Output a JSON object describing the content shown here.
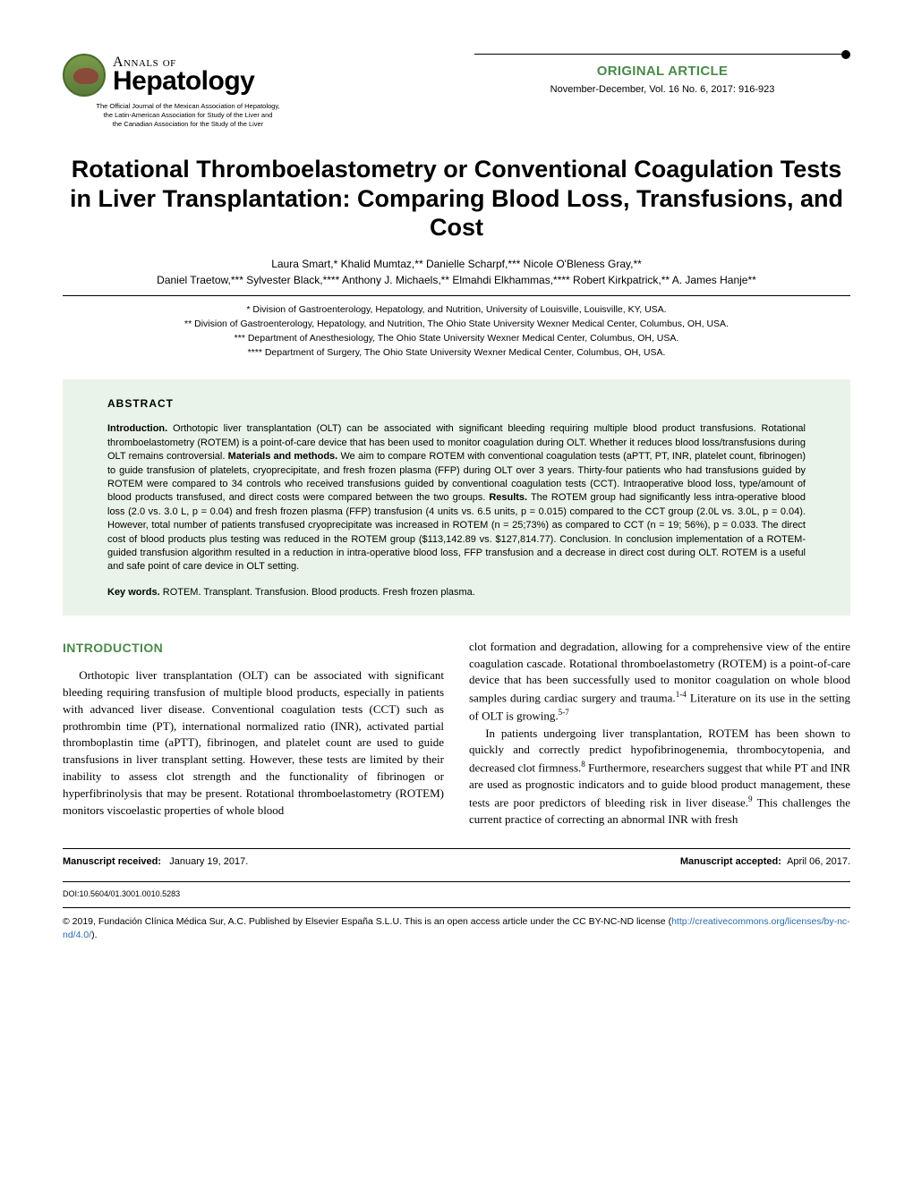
{
  "journal": {
    "annals_of": "Annals of",
    "name": "Hepatology",
    "subtitle_line1": "The Official Journal of the Mexican Association of Hepatology,",
    "subtitle_line2": "the Latin-American Association for Study of the Liver and",
    "subtitle_line3": "the Canadian Association for the Study of the Liver"
  },
  "meta": {
    "article_type": "ORIGINAL ARTICLE",
    "issue": "November-December, Vol. 16 No. 6, 2017: 916-923"
  },
  "title": "Rotational Thromboelastometry or Conventional Coagulation Tests in Liver Transplantation: Comparing Blood Loss, Transfusions, and Cost",
  "authors_line1": "Laura Smart,* Khalid Mumtaz,** Danielle Scharpf,*** Nicole O'Bleness Gray,**",
  "authors_line2": "Daniel Traetow,*** Sylvester Black,**** Anthony J. Michaels,** Elmahdi Elkhammas,**** Robert Kirkpatrick,** A. James Hanje**",
  "affiliations": {
    "a1": "* Division of Gastroenterology, Hepatology, and Nutrition, University of Louisville, Louisville, KY, USA.",
    "a2": "** Division of Gastroenterology, Hepatology, and Nutrition, The Ohio State University Wexner Medical Center, Columbus, OH, USA.",
    "a3": "*** Department of Anesthesiology, The Ohio State University Wexner Medical Center, Columbus, OH, USA.",
    "a4": "**** Department of Surgery, The Ohio State University Wexner Medical Center, Columbus, OH, USA."
  },
  "abstract": {
    "heading": "ABSTRACT",
    "intro_label": "Introduction.",
    "intro": " Orthotopic liver transplantation (OLT) can be associated with significant bleeding requiring multiple blood product transfusions. Rotational thromboelastometry (ROTEM) is a point-of-care device that has been used to monitor coagulation during OLT. Whether it reduces blood loss/transfusions during OLT remains controversial. ",
    "methods_label": "Materials and methods.",
    "methods": " We aim to compare ROTEM with conventional coagulation tests (aPTT, PT, INR, platelet count, fibrinogen) to guide transfusion of platelets, cryoprecipitate, and fresh frozen plasma (FFP) during OLT over 3 years. Thirty-four patients who had transfusions guided by ROTEM were compared to 34 controls who received transfusions guided by conventional coagulation tests (CCT). Intraoperative blood loss, type/amount of blood products transfused, and direct costs were compared between the two groups. ",
    "results_label": "Results.",
    "results": " The ROTEM group had significantly less intra-operative blood loss (2.0 vs. 3.0 L, p = 0.04) and fresh frozen plasma (FFP) transfusion (4 units vs. 6.5 units, p = 0.015) compared to the CCT group (2.0L vs. 3.0L, p = 0.04). However, total number of patients transfused cryoprecipitate was increased in ROTEM (n = 25;73%) as compared to CCT (n = 19; 56%), p = 0.033. The direct cost of blood products plus testing was reduced in the ROTEM group ($113,142.89 vs. $127,814.77). Conclusion. In conclusion implementation of a ROTEM-guided transfusion algorithm resulted in a reduction in intra-operative blood loss, FFP transfusion and a decrease in direct cost during OLT. ROTEM is a useful and safe point of care device in OLT setting.",
    "keywords_label": "Key words.",
    "keywords": " ROTEM. Transplant. Transfusion. Blood products. Fresh frozen plasma."
  },
  "body": {
    "introduction_heading": "INTRODUCTION",
    "col1_p1": "Orthotopic liver transplantation (OLT) can be associated with significant bleeding requiring transfusion of multiple blood products, especially in patients with advanced liver disease. Conventional coagulation tests (CCT) such as prothrombin time (PT), international normalized ratio (INR), activated partial thromboplastin time (aPTT), fibrinogen, and platelet count are used to guide transfusions in liver transplant setting. However, these tests are limited by their inability to assess clot strength and the functionality of fibrinogen or hyperfibrinolysis that may be present. Rotational thromboelastometry (ROTEM) monitors viscoelastic properties of whole blood",
    "col2_p1": "clot formation and degradation, allowing for a comprehensive view of the entire coagulation cascade. Rotational thromboelastometry (ROTEM) is a point-of-care device that has been successfully used to monitor coagulation on whole blood samples during cardiac surgery and trauma.",
    "col2_p1_sup": "1-4",
    "col2_p1b": " Literature on its use in the setting of OLT is growing.",
    "col2_p1b_sup": "5-7",
    "col2_p2a": "In patients undergoing liver transplantation, ROTEM has been shown to quickly and correctly predict hypofibrinogenemia, thrombocytopenia, and decreased clot firmness.",
    "col2_p2a_sup": "8",
    "col2_p2b": " Furthermore, researchers suggest that while PT and INR are used as prognostic indicators and to guide blood product management, these tests are poor predictors of bleeding risk in liver disease.",
    "col2_p2b_sup": "9",
    "col2_p2c": " This challenges the current practice of correcting an abnormal INR with fresh"
  },
  "footer": {
    "received_label": "Manuscript received:",
    "received_date": "January 19, 2017.",
    "accepted_label": "Manuscript accepted:",
    "accepted_date": "April 06, 2017.",
    "doi": "DOI:10.5604/01.3001.0010.5283",
    "license_pre": "© 2019, Fundación Clínica Médica Sur, A.C. Published by Elsevier España S.L.U. This is an open access article under the CC BY-NC-ND license (",
    "license_url": "http://creativecommons.org/licenses/by-nc-nd/4.0/",
    "license_post": ")."
  },
  "colors": {
    "accent_green": "#4a8a4a",
    "abstract_bg": "#eaf3ea",
    "link_blue": "#2a6aaa"
  }
}
